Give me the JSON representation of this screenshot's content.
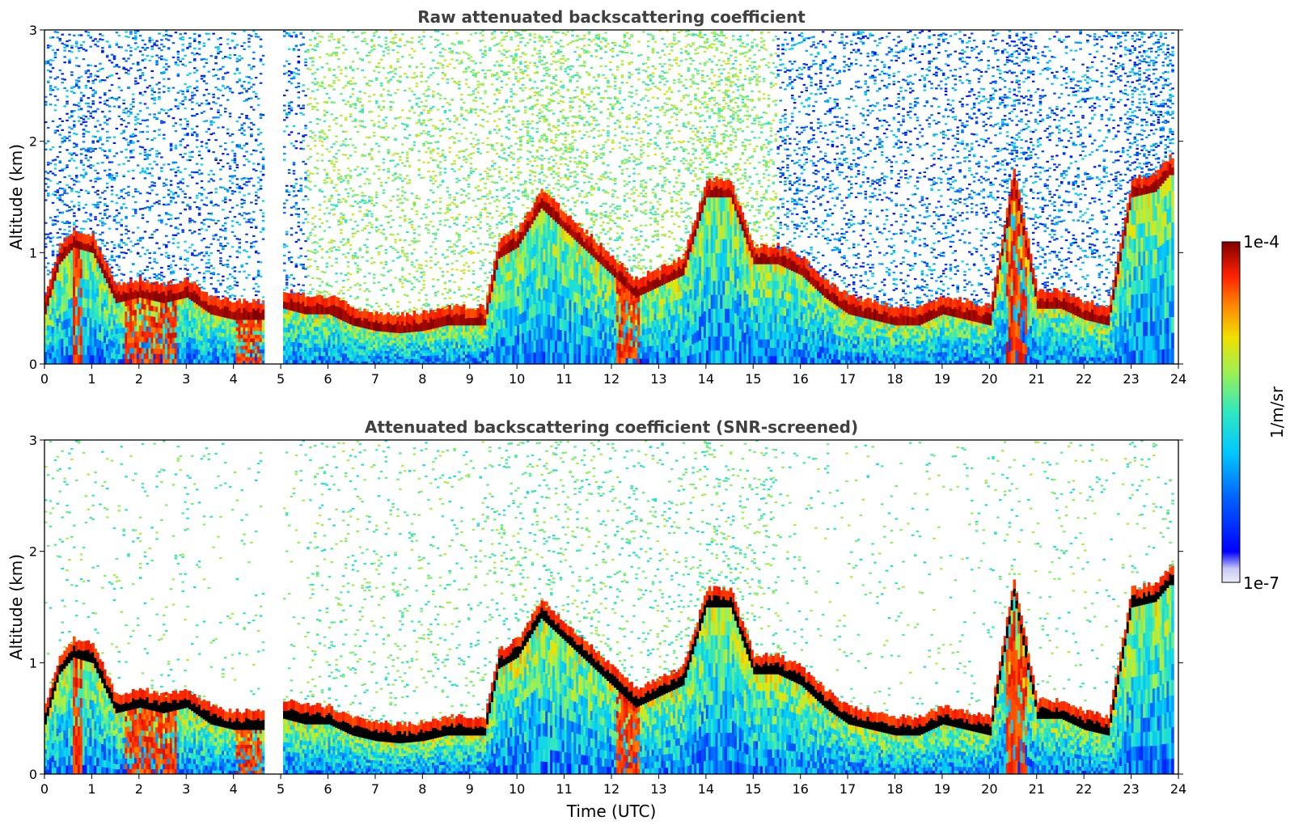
{
  "chart_data": [
    {
      "type": "heatmap",
      "title": "Raw attenuated backscattering coefficient",
      "xlabel": "",
      "ylabel": "Altitude (km)",
      "xlim": [
        0,
        24
      ],
      "ylim": [
        0,
        3
      ],
      "xticks": [
        0,
        1,
        2,
        3,
        4,
        5,
        6,
        7,
        8,
        9,
        10,
        11,
        12,
        13,
        14,
        15,
        16,
        17,
        18,
        19,
        20,
        21,
        22,
        23,
        24
      ],
      "yticks": [
        0,
        1,
        2,
        3
      ],
      "screened": false,
      "data_gap_hours": [
        4.62,
        5.02
      ],
      "boundary_layer_km": [
        [
          0.0,
          0.45
        ],
        [
          0.3,
          0.9
        ],
        [
          0.6,
          1.05
        ],
        [
          1.0,
          1.0
        ],
        [
          1.5,
          0.55
        ],
        [
          2.0,
          0.6
        ],
        [
          2.5,
          0.55
        ],
        [
          3.0,
          0.6
        ],
        [
          3.5,
          0.45
        ],
        [
          4.0,
          0.4
        ],
        [
          4.6,
          0.4
        ],
        [
          5.05,
          0.5
        ],
        [
          5.5,
          0.45
        ],
        [
          6.0,
          0.45
        ],
        [
          6.5,
          0.35
        ],
        [
          7.0,
          0.3
        ],
        [
          7.5,
          0.28
        ],
        [
          8.0,
          0.3
        ],
        [
          8.5,
          0.35
        ],
        [
          9.0,
          0.35
        ],
        [
          9.3,
          0.35
        ],
        [
          9.6,
          0.95
        ],
        [
          10.0,
          1.05
        ],
        [
          10.5,
          1.4
        ],
        [
          11.0,
          1.2
        ],
        [
          11.5,
          1.0
        ],
        [
          12.0,
          0.8
        ],
        [
          12.5,
          0.6
        ],
        [
          13.0,
          0.7
        ],
        [
          13.5,
          0.8
        ],
        [
          14.0,
          1.5
        ],
        [
          14.5,
          1.5
        ],
        [
          15.0,
          0.9
        ],
        [
          15.5,
          0.9
        ],
        [
          16.0,
          0.8
        ],
        [
          16.5,
          0.6
        ],
        [
          17.0,
          0.45
        ],
        [
          17.5,
          0.4
        ],
        [
          18.0,
          0.35
        ],
        [
          18.5,
          0.35
        ],
        [
          19.0,
          0.45
        ],
        [
          19.5,
          0.4
        ],
        [
          20.0,
          0.35
        ],
        [
          20.5,
          1.6
        ],
        [
          21.0,
          0.5
        ],
        [
          21.5,
          0.5
        ],
        [
          22.0,
          0.4
        ],
        [
          22.5,
          0.35
        ],
        [
          23.0,
          1.5
        ],
        [
          23.5,
          1.55
        ],
        [
          23.8,
          1.7
        ]
      ]
    },
    {
      "type": "heatmap",
      "title": "Attenuated backscattering coefficient (SNR-screened)",
      "xlabel": "Time (UTC)",
      "ylabel": "Altitude (km)",
      "xlim": [
        0,
        24
      ],
      "ylim": [
        0,
        3
      ],
      "xticks": [
        0,
        1,
        2,
        3,
        4,
        5,
        6,
        7,
        8,
        9,
        10,
        11,
        12,
        13,
        14,
        15,
        16,
        17,
        18,
        19,
        20,
        21,
        22,
        23,
        24
      ],
      "yticks": [
        0,
        1,
        2,
        3
      ],
      "screened": true,
      "data_gap_hours": [
        4.62,
        5.02
      ],
      "boundary_layer_km": [
        [
          0.0,
          0.45
        ],
        [
          0.3,
          0.9
        ],
        [
          0.6,
          1.05
        ],
        [
          1.0,
          1.0
        ],
        [
          1.5,
          0.55
        ],
        [
          2.0,
          0.6
        ],
        [
          2.5,
          0.55
        ],
        [
          3.0,
          0.6
        ],
        [
          3.5,
          0.45
        ],
        [
          4.0,
          0.4
        ],
        [
          4.6,
          0.4
        ],
        [
          5.05,
          0.5
        ],
        [
          5.5,
          0.45
        ],
        [
          6.0,
          0.45
        ],
        [
          6.5,
          0.35
        ],
        [
          7.0,
          0.3
        ],
        [
          7.5,
          0.28
        ],
        [
          8.0,
          0.3
        ],
        [
          8.5,
          0.35
        ],
        [
          9.0,
          0.35
        ],
        [
          9.3,
          0.35
        ],
        [
          9.6,
          0.95
        ],
        [
          10.0,
          1.05
        ],
        [
          10.5,
          1.4
        ],
        [
          11.0,
          1.2
        ],
        [
          11.5,
          1.0
        ],
        [
          12.0,
          0.8
        ],
        [
          12.5,
          0.6
        ],
        [
          13.0,
          0.7
        ],
        [
          13.5,
          0.8
        ],
        [
          14.0,
          1.5
        ],
        [
          14.5,
          1.5
        ],
        [
          15.0,
          0.9
        ],
        [
          15.5,
          0.9
        ],
        [
          16.0,
          0.8
        ],
        [
          16.5,
          0.6
        ],
        [
          17.0,
          0.45
        ],
        [
          17.5,
          0.4
        ],
        [
          18.0,
          0.35
        ],
        [
          18.5,
          0.35
        ],
        [
          19.0,
          0.45
        ],
        [
          19.5,
          0.4
        ],
        [
          20.0,
          0.35
        ],
        [
          20.5,
          1.6
        ],
        [
          21.0,
          0.5
        ],
        [
          21.5,
          0.5
        ],
        [
          22.0,
          0.4
        ],
        [
          22.5,
          0.35
        ],
        [
          23.0,
          1.5
        ],
        [
          23.5,
          1.55
        ],
        [
          23.8,
          1.7
        ]
      ]
    }
  ],
  "colorbar": {
    "label": "1/m/sr",
    "max_label": "1e-4",
    "min_label": "1e-7",
    "colormap": "jet",
    "scale": "log",
    "range": [
      1e-07,
      0.0001
    ]
  },
  "colors": {
    "title": "#404040",
    "background": "#ffffff",
    "axis": "#000000"
  }
}
